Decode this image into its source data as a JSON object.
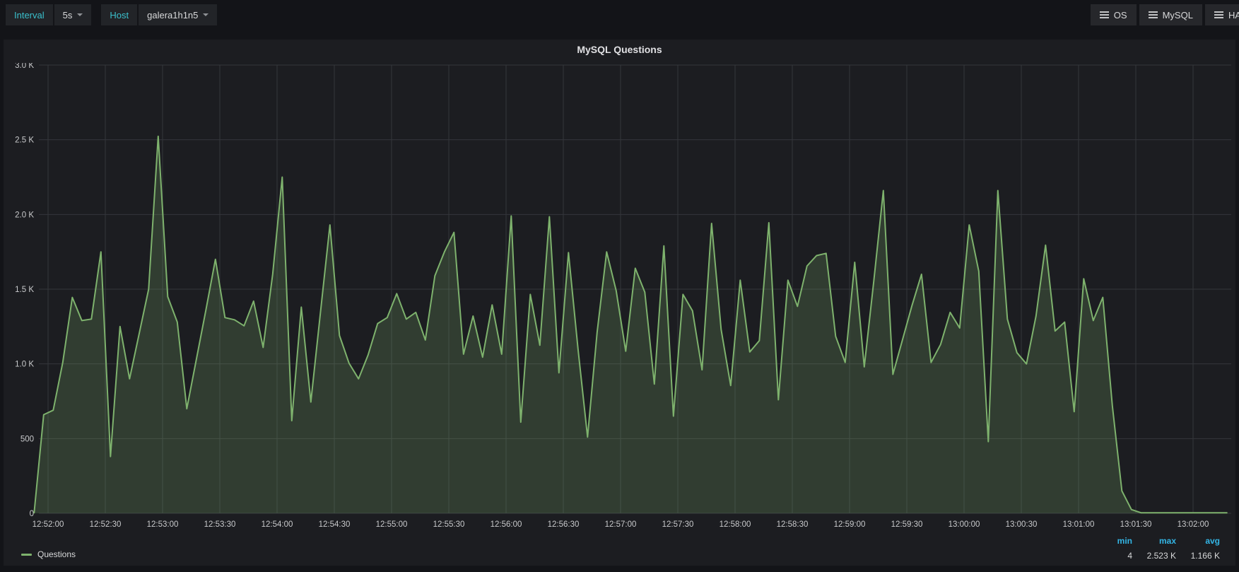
{
  "toolbar": {
    "interval_label": "Interval",
    "interval_value": "5s",
    "host_label": "Host",
    "host_value": "galera1h1n5",
    "menu_buttons": [
      {
        "label": "OS"
      },
      {
        "label": "MySQL"
      },
      {
        "label": "HA"
      }
    ]
  },
  "panel": {
    "title": "MySQL Questions"
  },
  "legend": {
    "series_label": "Questions",
    "stats": {
      "min_label": "min",
      "max_label": "max",
      "avg_label": "avg",
      "min": "4",
      "max": "2.523 K",
      "avg": "1.166 K"
    }
  },
  "colors": {
    "accent_teal": "#3ac0cc",
    "stats_blue": "#33b5e5",
    "series_green": "#7eb26d",
    "series_fill": "rgba(126,178,109,0.22)",
    "panel_bg": "#1c1d21",
    "page_bg": "#131418",
    "gridline": "#34363b"
  },
  "chart_data": {
    "type": "area",
    "title": "MySQL Questions",
    "x_start": "12:51:55",
    "x_step_seconds": 5,
    "x_tick_labels": [
      "12:52:00",
      "12:52:30",
      "12:53:00",
      "12:53:30",
      "12:54:00",
      "12:54:30",
      "12:55:00",
      "12:55:30",
      "12:56:00",
      "12:56:30",
      "12:57:00",
      "12:57:30",
      "12:58:00",
      "12:58:30",
      "12:59:00",
      "12:59:30",
      "13:00:00",
      "13:00:30",
      "13:01:00",
      "13:01:30",
      "13:02:00"
    ],
    "y_ticks": [
      {
        "label": "0",
        "value": 0
      },
      {
        "label": "500",
        "value": 500
      },
      {
        "label": "1.0 K",
        "value": 1000
      },
      {
        "label": "1.5 K",
        "value": 1500
      },
      {
        "label": "2.0 K",
        "value": 2000
      },
      {
        "label": "2.5 K",
        "value": 2500
      },
      {
        "label": "3.0 K",
        "value": 3000
      }
    ],
    "ylim": [
      0,
      3000
    ],
    "grid": true,
    "legend_position": "bottom-left",
    "series": [
      {
        "name": "Questions",
        "values": [
          4,
          660,
          690,
          1010,
          1445,
          1290,
          1300,
          1750,
          380,
          1250,
          900,
          1200,
          1500,
          2523,
          1450,
          1280,
          700,
          1030,
          1360,
          1700,
          1310,
          1295,
          1255,
          1420,
          1110,
          1600,
          2250,
          620,
          1380,
          745,
          1340,
          1930,
          1190,
          1005,
          900,
          1060,
          1270,
          1310,
          1470,
          1300,
          1345,
          1160,
          1590,
          1750,
          1880,
          1065,
          1320,
          1045,
          1395,
          1065,
          1990,
          610,
          1465,
          1125,
          1985,
          940,
          1745,
          1100,
          510,
          1210,
          1750,
          1490,
          1085,
          1640,
          1480,
          865,
          1790,
          650,
          1465,
          1355,
          960,
          1940,
          1230,
          855,
          1560,
          1080,
          1155,
          1945,
          760,
          1560,
          1385,
          1655,
          1725,
          1740,
          1185,
          1010,
          1680,
          980,
          1555,
          2160,
          930,
          1160,
          1390,
          1600,
          1010,
          1130,
          1345,
          1240,
          1930,
          1620,
          480,
          2160,
          1300,
          1075,
          1000,
          1320,
          1795,
          1220,
          1280,
          680,
          1570,
          1290,
          1445,
          720,
          150,
          25,
          4,
          4,
          4,
          4,
          4,
          4,
          4,
          4,
          4,
          4
        ]
      }
    ],
    "stats": {
      "min": 4,
      "max": 2523,
      "avg": 1166
    }
  }
}
